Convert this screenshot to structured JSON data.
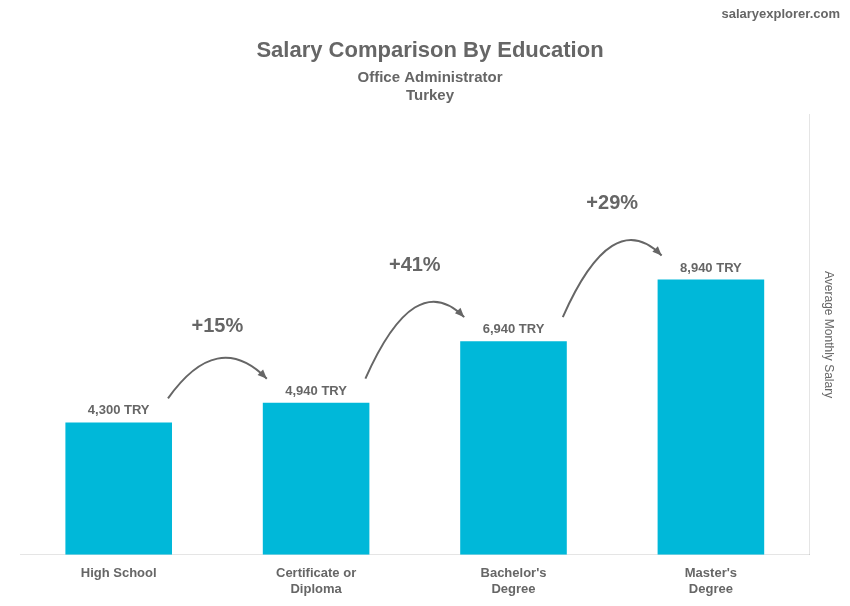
{
  "chart_data": {
    "type": "bar",
    "title": "Salary Comparison By Education",
    "subtitle": [
      "Office Administrator",
      "Turkey"
    ],
    "ylabel": "Average Monthly Salary",
    "categories": [
      "High School",
      "Certificate or\nDiploma",
      "Bachelor's\nDegree",
      "Master's\nDegree"
    ],
    "values": [
      4300,
      4940,
      6940,
      8940
    ],
    "value_labels": [
      "4,300 TRY",
      "4,940 TRY",
      "6,940 TRY",
      "8,940 TRY"
    ],
    "data_labels": true,
    "color": "#00b8d9",
    "ylim": [
      0,
      14304
    ],
    "grid": false,
    "tick_labels": "x",
    "annotations": [
      {
        "text": "+15%",
        "from": "High School",
        "to": "Certificate or\nDiploma"
      },
      {
        "text": "+41%",
        "from": "Certificate or\nDiploma",
        "to": "Bachelor's\nDegree"
      },
      {
        "text": "+29%",
        "from": "Bachelor's\nDegree",
        "to": "Master's\nDegree"
      },
      {
        "text": "salaryexplorer.com"
      }
    ]
  }
}
